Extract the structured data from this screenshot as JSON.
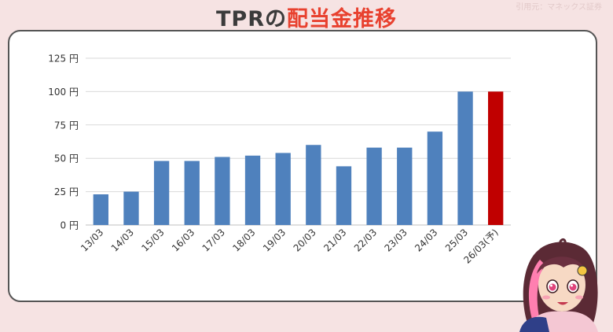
{
  "title": {
    "prefix": "TPRの",
    "main": "配当金推移"
  },
  "source_note": "引用元：マネックス証券",
  "colors": {
    "background": "#f6e3e3",
    "bar": "#4f81bd",
    "forecast_bar": "#c00000",
    "title_red": "#e8412f"
  },
  "chart_data": {
    "type": "bar",
    "categories": [
      "13/03",
      "14/03",
      "15/03",
      "16/03",
      "17/03",
      "18/03",
      "19/03",
      "20/03",
      "21/03",
      "22/03",
      "23/03",
      "24/03",
      "25/03",
      "26/03(予)"
    ],
    "values": [
      23,
      25,
      48,
      48,
      51,
      52,
      54,
      60,
      44,
      58,
      58,
      70,
      100,
      100
    ],
    "highlight_index": 13,
    "yticks": [
      "0 円",
      "25 円",
      "50 円",
      "75 円",
      "100 円",
      "125 円"
    ],
    "ylim": [
      0,
      125
    ],
    "grid": true,
    "legend": "none"
  }
}
